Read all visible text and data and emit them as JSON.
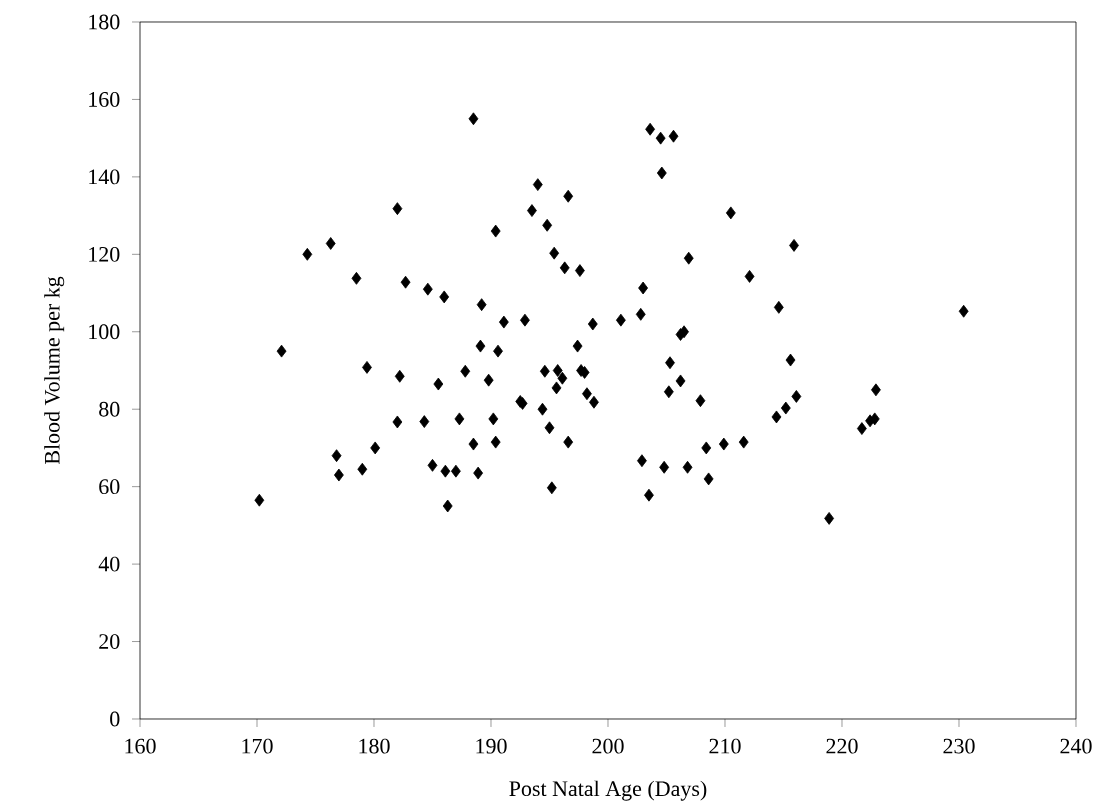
{
  "chart_data": {
    "type": "scatter",
    "xlabel": "Post Natal Age (Days)",
    "ylabel": "Blood Volume per kg",
    "marker": "diamond",
    "color": "#000000",
    "x": [
      170.2,
      172.1,
      174.3,
      176.3,
      176.8,
      177,
      178.5,
      179,
      179.4,
      180.1,
      182,
      182,
      182.2,
      182.7,
      184.3,
      184.6,
      185,
      185.5,
      186,
      186.1,
      186.3,
      187,
      187.3,
      187.8,
      188.5,
      188.5,
      188.9,
      189.1,
      189.2,
      189.8,
      190.2,
      190.4,
      190.4,
      190.6,
      191.1,
      192.5,
      192.7,
      192.9,
      193.5,
      194,
      194.4,
      194.6,
      194.8,
      195,
      195.2,
      195.4,
      195.7,
      195.6,
      196.1,
      196.3,
      196.6,
      196.6,
      197.4,
      197.6,
      197.7,
      198,
      198.2,
      198.7,
      198.8,
      201.1,
      202.8,
      202.9,
      203,
      203.5,
      203.6,
      204.5,
      204.6,
      204.8,
      205.2,
      205.3,
      205.6,
      206.2,
      206.2,
      206.5,
      206.8,
      206.9,
      207.9,
      208.4,
      208.6,
      209.9,
      210.5,
      211.6,
      212.1,
      214.4,
      214.6,
      215.2,
      215.6,
      215.9,
      216.1,
      218.9,
      221.7,
      222.4,
      222.8,
      222.9,
      230.4
    ],
    "values": [
      56.5,
      95,
      120,
      122.8,
      68,
      63,
      113.8,
      64.5,
      90.8,
      70,
      131.8,
      76.7,
      88.5,
      112.8,
      76.8,
      111,
      65.5,
      86.5,
      109,
      64,
      55,
      64,
      77.5,
      89.8,
      155,
      71,
      63.5,
      96.3,
      107,
      87.5,
      77.5,
      126,
      71.5,
      95,
      102.5,
      82,
      81.5,
      103,
      131.3,
      138,
      80,
      89.8,
      127.5,
      75.2,
      59.7,
      120.3,
      90,
      85.5,
      88,
      116.5,
      135,
      71.5,
      96.3,
      115.8,
      90,
      89.5,
      84,
      102,
      81.8,
      103,
      104.5,
      66.7,
      111.3,
      57.8,
      152.3,
      150,
      141,
      65,
      84.5,
      92,
      150.5,
      99.3,
      87.3,
      100,
      65,
      119,
      82.2,
      70,
      62,
      71,
      130.7,
      71.5,
      114.3,
      78,
      106.3,
      80.3,
      92.7,
      122.3,
      83.3,
      51.8,
      75,
      77,
      77.5,
      85,
      105.3
    ],
    "xlim": [
      160,
      240
    ],
    "ylim": [
      0,
      180
    ],
    "xticks": [
      160,
      170,
      180,
      190,
      200,
      210,
      220,
      230,
      240
    ],
    "yticks": [
      0,
      20,
      40,
      60,
      80,
      100,
      120,
      140,
      160,
      180
    ]
  }
}
